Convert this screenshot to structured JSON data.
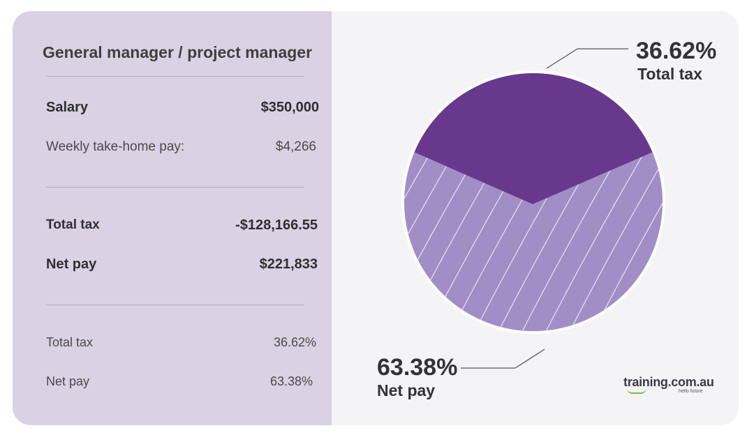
{
  "title": "General manager / project manager",
  "rows": {
    "salary": {
      "label": "Salary",
      "value": "$350,000"
    },
    "weekly": {
      "label": "Weekly take-home pay:",
      "value": "$4,266"
    },
    "total_tax": {
      "label": "Total tax",
      "value": "-$128,166.55"
    },
    "net_pay": {
      "label": "Net pay",
      "value": "$221,833"
    },
    "total_tax_pct": {
      "label": "Total tax",
      "value": "36.62%"
    },
    "net_pay_pct": {
      "label": "Net pay",
      "value": "63.38%"
    }
  },
  "callouts": {
    "tax": {
      "pct": "36.62%",
      "label": "Total tax"
    },
    "net": {
      "pct": "63.38%",
      "label": "Net pay"
    }
  },
  "logo": {
    "text": "training.com.au",
    "tagline": "hello future"
  },
  "colors": {
    "tax_slice": "#67388c",
    "net_slice": "#a18ec7",
    "left_panel": "#dbd1e4",
    "logo_accent": "#7dbb3a"
  },
  "chart_data": {
    "type": "pie",
    "categories": [
      "Total tax",
      "Net pay"
    ],
    "values": [
      36.62,
      63.38
    ],
    "title": "",
    "xlabel": "",
    "ylabel": ""
  }
}
